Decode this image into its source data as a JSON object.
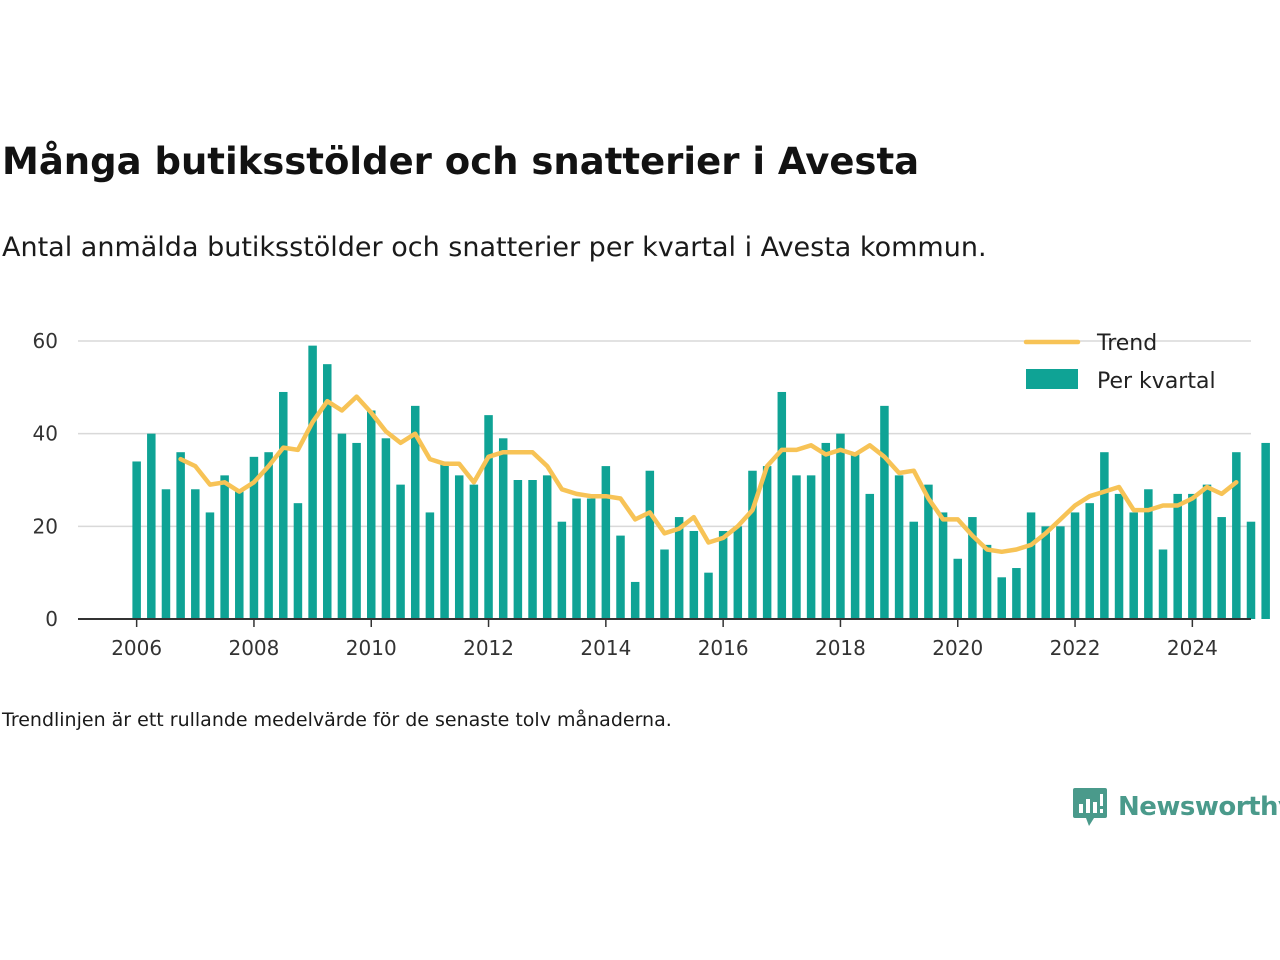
{
  "title": "Många butiksstölder och snatterier i Avesta",
  "subtitle": "Antal anmälda butiksstölder och snatterier per kvartal i Avesta kommun.",
  "footnote": "Trendlinjen är ett rullande medelvärde för de senaste tolv månaderna.",
  "brand": {
    "name": "Newsworthy",
    "color": "#4a9a8b",
    "icon": "newsworthy-logo-icon"
  },
  "chart_data": {
    "type": "bar",
    "x_unit": "quarter",
    "x_start": "2006-Q1",
    "xlim": [
      2005.0,
      2025.0
    ],
    "ylim": [
      0,
      60
    ],
    "yticks": [
      0,
      20,
      40,
      60
    ],
    "xticks": [
      "2006",
      "2008",
      "2010",
      "2012",
      "2014",
      "2016",
      "2018",
      "2020",
      "2022",
      "2024"
    ],
    "grid": true,
    "legend": "top-right",
    "colors": {
      "bars": "#0fa395",
      "trend": "#f7c356",
      "grid": "#d9d9d9",
      "axis": "#333333"
    },
    "series": [
      {
        "name": "Per kvartal",
        "type": "bar",
        "values": [
          34,
          40,
          28,
          36,
          28,
          23,
          31,
          28,
          35,
          36,
          49,
          25,
          59,
          55,
          40,
          38,
          45,
          39,
          29,
          46,
          23,
          34,
          31,
          29,
          44,
          39,
          30,
          30,
          31,
          21,
          26,
          26,
          33,
          18,
          8,
          32,
          15,
          22,
          19,
          10,
          19,
          20,
          32,
          33,
          49,
          31,
          31,
          38,
          40,
          36,
          27,
          46,
          31,
          21,
          29,
          23,
          13,
          22,
          16,
          9,
          11,
          23,
          20,
          20,
          23,
          25,
          36,
          27,
          23,
          28,
          15,
          27,
          27,
          29,
          22,
          36,
          21,
          38
        ]
      },
      {
        "name": "Trend",
        "type": "line",
        "start_index": 3,
        "values": [
          34.5,
          33,
          29,
          29.5,
          27.5,
          29.5,
          33,
          37,
          36.5,
          42.5,
          47,
          45,
          48,
          44.5,
          40.5,
          38,
          40,
          34.5,
          33.5,
          33.5,
          29.5,
          35,
          36,
          36,
          36,
          33,
          28,
          27,
          26.5,
          26.5,
          26,
          21.5,
          23,
          18.5,
          19.5,
          22,
          16.5,
          17.5,
          20,
          23.5,
          33,
          36.5,
          36.5,
          37.5,
          35.5,
          36.5,
          35.5,
          37.5,
          35,
          31.5,
          32,
          26,
          21.5,
          21.5,
          18,
          15,
          14.5,
          15,
          16,
          18.5,
          21.5,
          24.5,
          26.5,
          27.5,
          28.5,
          23.5,
          23.5,
          24.5,
          24.5,
          26,
          28.5,
          27,
          29.5
        ]
      }
    ]
  }
}
